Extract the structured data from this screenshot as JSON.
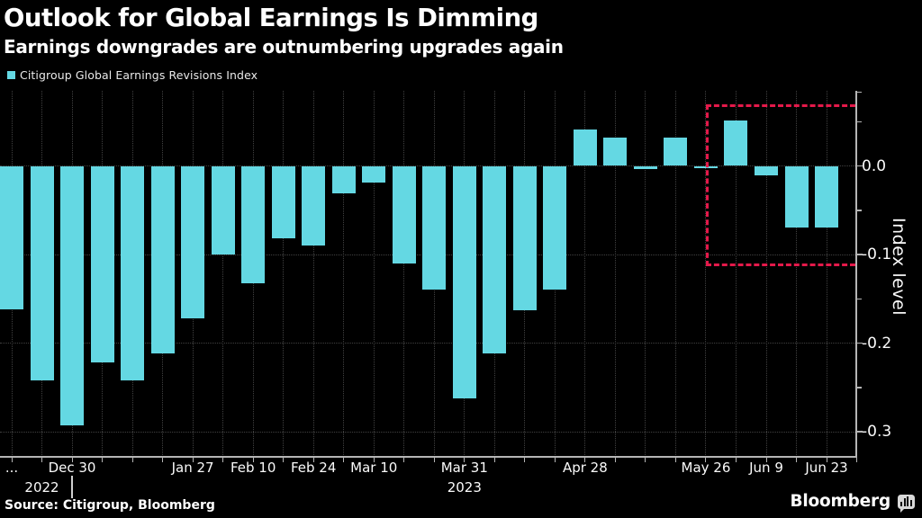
{
  "header": {
    "title": "Outlook for Global Earnings Is Dimming",
    "subtitle": "Earnings downgrades are outnumbering upgrades again"
  },
  "legend": {
    "label": "Citigroup Global Earnings Revisions Index",
    "swatch_color": "#64d8e3"
  },
  "chart_data": {
    "type": "bar",
    "series_name": "Citigroup Global Earnings Revisions Index",
    "n_bars": 28,
    "values": [
      -0.162,
      -0.242,
      -0.293,
      -0.222,
      -0.242,
      -0.212,
      -0.172,
      -0.1,
      -0.132,
      -0.082,
      -0.09,
      -0.031,
      -0.019,
      -0.11,
      -0.14,
      -0.262,
      -0.212,
      -0.163,
      -0.14,
      0.041,
      0.032,
      -0.004,
      0.032,
      -0.003,
      0.051,
      -0.011,
      -0.07,
      -0.07
    ],
    "x_tick_labels": [
      {
        "index": 0,
        "label": "..."
      },
      {
        "index": 2,
        "label": "Dec 30"
      },
      {
        "index": 6,
        "label": "Jan 27"
      },
      {
        "index": 8,
        "label": "Feb 10"
      },
      {
        "index": 10,
        "label": "Feb 24"
      },
      {
        "index": 12,
        "label": "Mar 10"
      },
      {
        "index": 15,
        "label": "Mar 31"
      },
      {
        "index": 19,
        "label": "Apr 28"
      },
      {
        "index": 23,
        "label": "May 26"
      },
      {
        "index": 25,
        "label": "Jun 9"
      },
      {
        "index": 27,
        "label": "Jun 23"
      }
    ],
    "year_labels": [
      {
        "index": 1,
        "label": "2022"
      },
      {
        "index": 15,
        "label": "2023"
      }
    ],
    "year_separator_index": 2,
    "y_ticks": [
      {
        "value": 0.0,
        "label": "0.0"
      },
      {
        "value": -0.1,
        "label": "-0.1"
      },
      {
        "value": -0.2,
        "label": "-0.2"
      },
      {
        "value": -0.3,
        "label": "-0.3"
      }
    ],
    "y_minor_ticks": [
      0.05,
      -0.05,
      -0.15,
      -0.25
    ],
    "ylabel": "Index level",
    "ylim": [
      -0.33,
      0.085
    ],
    "grid": true,
    "legend_position": "top-left",
    "colors": {
      "bar": "#64d8e3",
      "annotation": "#e4194a",
      "grid": "#414141",
      "axis": "#b5b5b5"
    },
    "annotation_box": {
      "x_start_index": 23,
      "x_end": "y-axis",
      "y_top": 0.07,
      "y_bottom": -0.1135,
      "style": "dashed",
      "color": "#e4194a"
    }
  },
  "footer": {
    "source": "Source: Citigroup, Bloomberg",
    "brand": "Bloomberg"
  },
  "icons": {
    "brand_icon": "bloomberg-chart-bubble-icon"
  }
}
